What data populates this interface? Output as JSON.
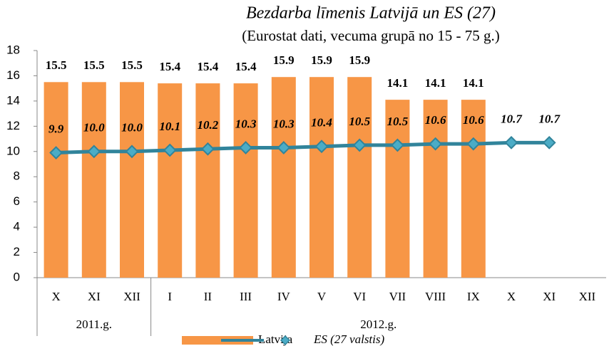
{
  "chart_data": {
    "type": "bar",
    "title": "Bezdarba līmenis Latvijā un ES (27)",
    "subtitle": "(Eurostat dati, vecuma grupā no 15 - 75 g.)",
    "categories": [
      "X",
      "XI",
      "XII",
      "I",
      "II",
      "III",
      "IV",
      "V",
      "VI",
      "VII",
      "VIII",
      "IX",
      "X",
      "XI",
      "XII"
    ],
    "groups": [
      {
        "label": "2011.g.",
        "count": 3
      },
      {
        "label": "2012.g.",
        "count": 12
      }
    ],
    "series": [
      {
        "name": "Latvija",
        "type": "bar",
        "color": "#f79646",
        "values": [
          15.5,
          15.5,
          15.5,
          15.4,
          15.4,
          15.4,
          15.9,
          15.9,
          15.9,
          14.1,
          14.1,
          14.1,
          null,
          null,
          null
        ]
      },
      {
        "name": "ES (27 valstis)",
        "type": "line",
        "color": "#31849b",
        "marker_color": "#4bacc6",
        "values": [
          9.9,
          10,
          10,
          10.1,
          10.2,
          10.3,
          10.3,
          10.4,
          10.5,
          10.5,
          10.6,
          10.6,
          10.7,
          10.7,
          null
        ],
        "value_labels": [
          "9.9",
          "10.0",
          "10.0",
          "10.1",
          "10.2",
          "10.3",
          "10.3",
          "10.4",
          "10.5",
          "10.5",
          "10.6",
          "10.6",
          "10.7",
          "10.7",
          null
        ]
      }
    ],
    "ylim": [
      0,
      18
    ],
    "yticks": [
      0,
      2,
      4,
      6,
      8,
      10,
      12,
      14,
      16,
      18
    ],
    "grid": false,
    "legend": "bottom"
  }
}
